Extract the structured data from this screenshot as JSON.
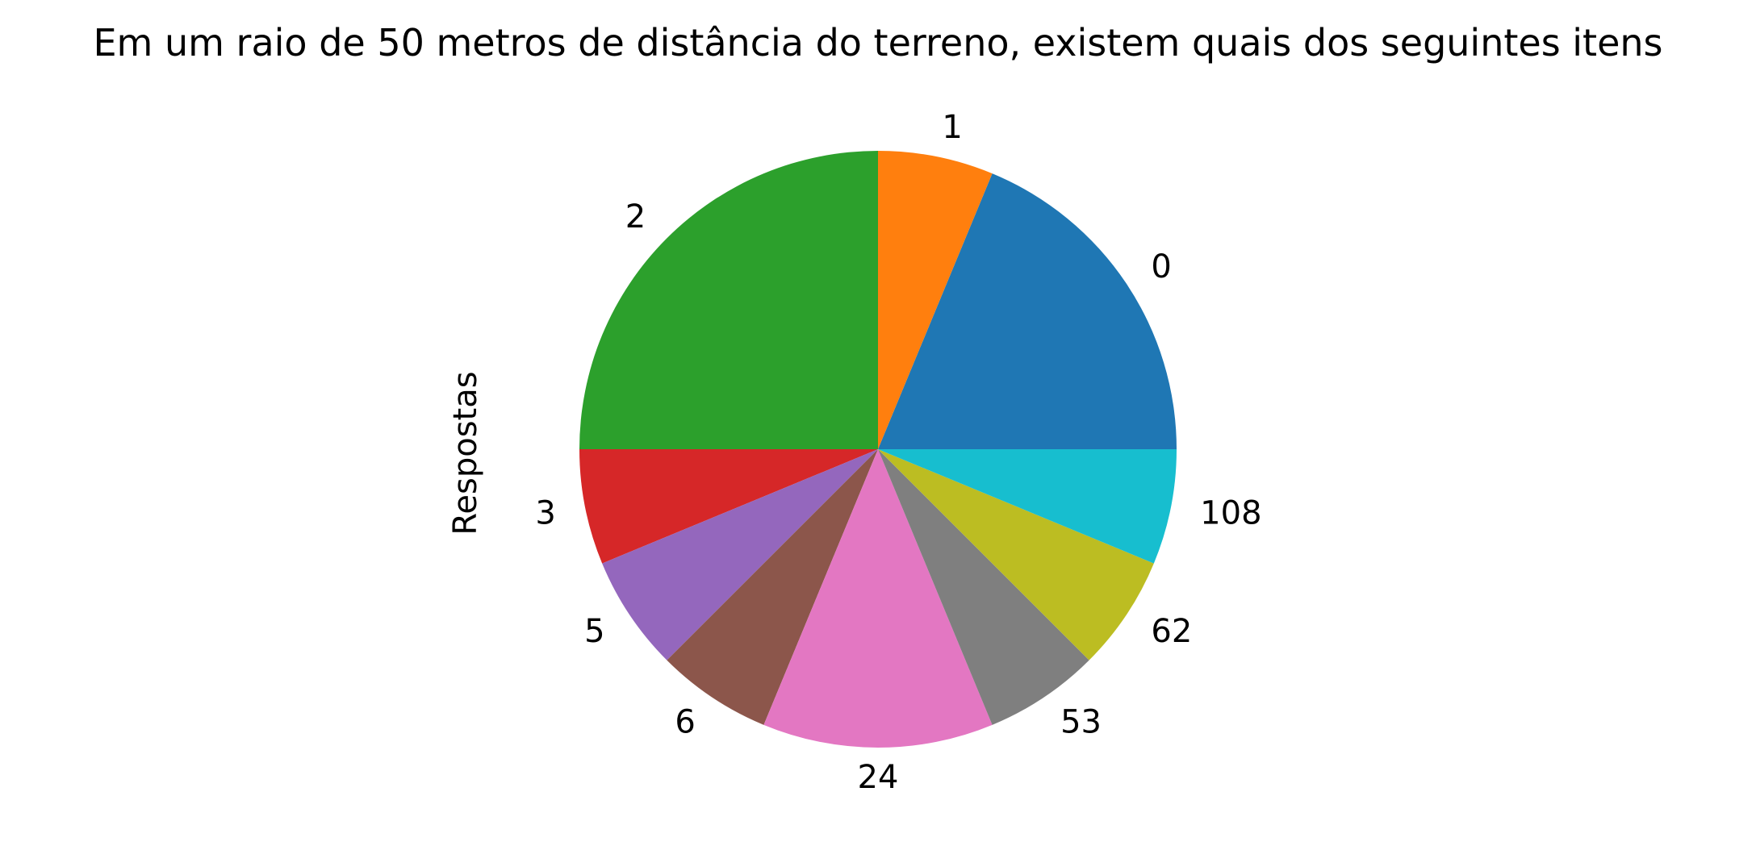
{
  "chart_data": {
    "type": "pie",
    "title": "Em um raio de 50 metros de distância do terreno, existem quais dos seguintes itens",
    "ylabel": "Respostas",
    "start_angle_deg": 0,
    "direction": "counterclockwise",
    "categories": [
      "0",
      "1",
      "2",
      "3",
      "5",
      "6",
      "24",
      "53",
      "62",
      "108"
    ],
    "values": [
      3,
      1,
      4,
      1,
      1,
      1,
      2,
      1,
      1,
      1
    ],
    "colors": [
      "#1f77b4",
      "#ff7f0e",
      "#2ca02c",
      "#d62728",
      "#9467bd",
      "#8c564b",
      "#e377c2",
      "#7f7f7f",
      "#bcbd22",
      "#17becf"
    ]
  }
}
